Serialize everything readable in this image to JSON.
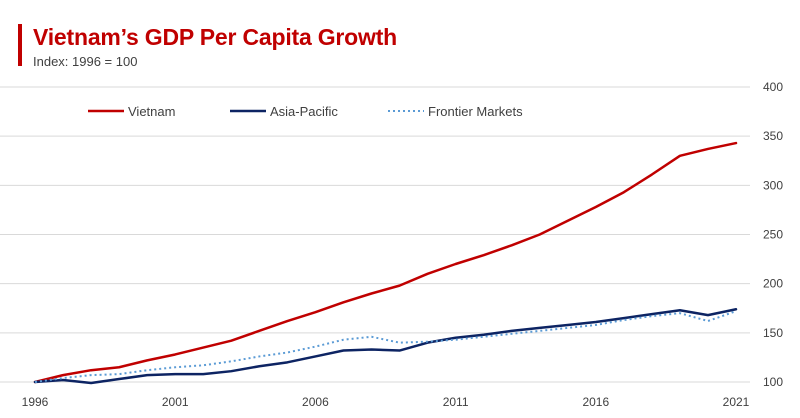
{
  "header": {
    "title": "Vietnam’s GDP Per Capita Growth",
    "subtitle": "Index: 1996 = 100"
  },
  "colors": {
    "accent": "#c00000",
    "vietnam": "#c00000",
    "asia_pacific": "#0d2463",
    "frontier": "#5b9bd5",
    "grid": "#d9d9d9"
  },
  "chart_data": {
    "type": "line",
    "title": "Vietnam’s GDP Per Capita Growth",
    "subtitle": "Index: 1996 = 100",
    "xlabel": "",
    "ylabel": "",
    "x": [
      1996,
      1997,
      1998,
      1999,
      2000,
      2001,
      2002,
      2003,
      2004,
      2005,
      2006,
      2007,
      2008,
      2009,
      2010,
      2011,
      2012,
      2013,
      2014,
      2015,
      2016,
      2017,
      2018,
      2019,
      2020,
      2021
    ],
    "xlim": [
      1996,
      2021
    ],
    "ylim": [
      100,
      400
    ],
    "x_ticks": [
      "1996",
      "2001",
      "2006",
      "2011",
      "2016",
      "2021"
    ],
    "y_ticks": [
      "100",
      "150",
      "200",
      "250",
      "300",
      "350",
      "400"
    ],
    "y_axis_side": "right",
    "grid": "horizontal",
    "legend_position": "top",
    "series": [
      {
        "name": "Vietnam",
        "style": "solid",
        "values": [
          100,
          107,
          112,
          115,
          122,
          128,
          135,
          142,
          152,
          162,
          171,
          181,
          190,
          198,
          210,
          220,
          229,
          239,
          250,
          264,
          278,
          293,
          311,
          330,
          337,
          343
        ]
      },
      {
        "name": "Asia-Pacific",
        "style": "solid",
        "values": [
          100,
          102,
          99,
          103,
          107,
          108,
          108,
          111,
          116,
          120,
          126,
          132,
          133,
          132,
          140,
          145,
          148,
          152,
          155,
          158,
          161,
          165,
          169,
          173,
          168,
          174
        ]
      },
      {
        "name": "Frontier Markets",
        "style": "dotted",
        "values": [
          100,
          104,
          107,
          108,
          112,
          115,
          117,
          121,
          126,
          130,
          136,
          143,
          146,
          140,
          141,
          143,
          146,
          149,
          152,
          155,
          158,
          163,
          167,
          170,
          162,
          172
        ]
      }
    ]
  }
}
